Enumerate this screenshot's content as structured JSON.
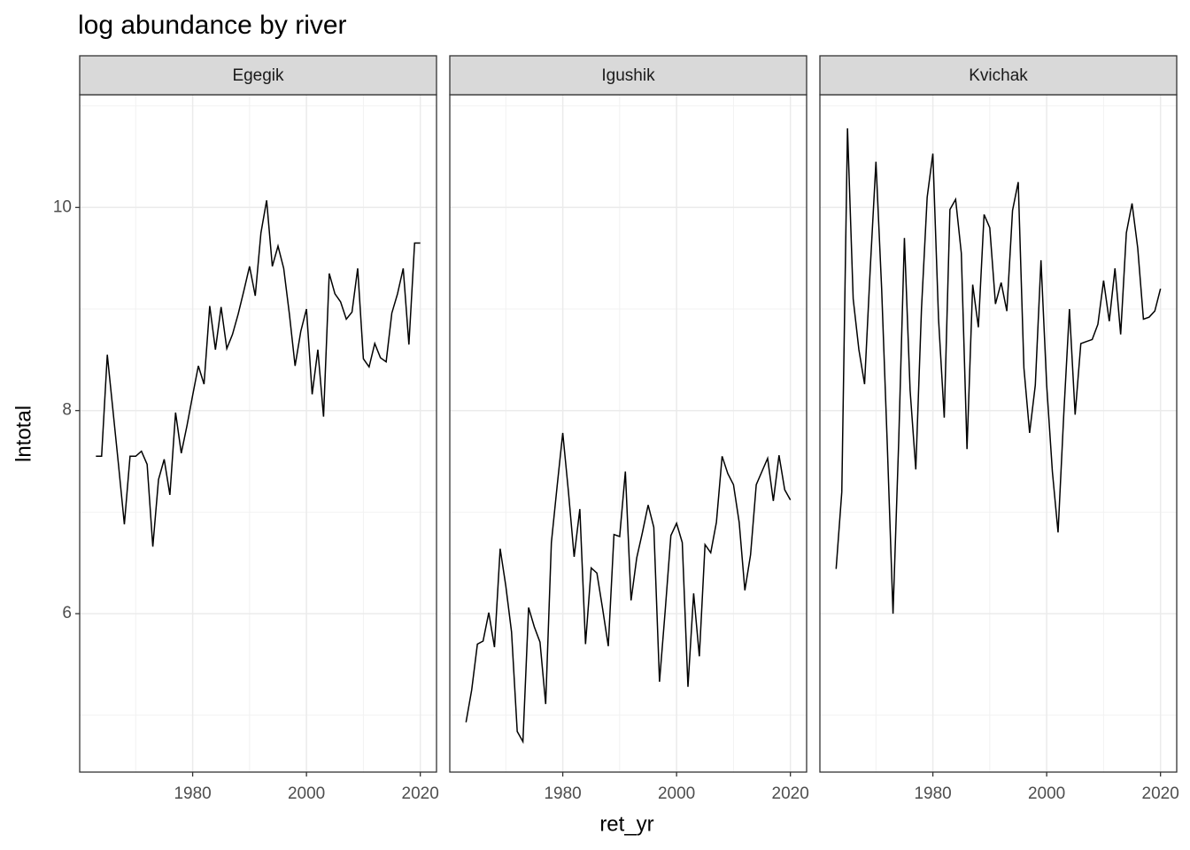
{
  "chart_data": {
    "type": "line",
    "title": "log abundance by river",
    "x_label": "ret_yr",
    "y_label": "lntotal",
    "x": [
      1963,
      1964,
      1965,
      1966,
      1967,
      1968,
      1969,
      1970,
      1971,
      1972,
      1973,
      1974,
      1975,
      1976,
      1977,
      1978,
      1979,
      1980,
      1981,
      1982,
      1983,
      1984,
      1985,
      1986,
      1987,
      1988,
      1989,
      1990,
      1991,
      1992,
      1993,
      1994,
      1995,
      1996,
      1997,
      1998,
      1999,
      2000,
      2001,
      2002,
      2003,
      2004,
      2005,
      2006,
      2007,
      2008,
      2009,
      2010,
      2011,
      2012,
      2013,
      2014,
      2015,
      2016,
      2017,
      2018,
      2019,
      2020
    ],
    "series": [
      {
        "name": "Egegik",
        "color": "#000000",
        "values": [
          7.55,
          7.55,
          8.55,
          8.0,
          7.45,
          6.88,
          7.55,
          7.55,
          7.6,
          7.47,
          6.66,
          7.32,
          7.52,
          7.17,
          7.98,
          7.58,
          7.85,
          8.15,
          8.44,
          8.26,
          9.03,
          8.6,
          9.02,
          8.61,
          8.75,
          8.95,
          9.18,
          9.42,
          9.13,
          9.75,
          10.07,
          9.42,
          9.62,
          9.4,
          8.95,
          8.44,
          8.78,
          9.0,
          8.16,
          8.6,
          7.94,
          9.35,
          9.15,
          9.07,
          8.9,
          8.97,
          9.4,
          8.51,
          8.43,
          8.66,
          8.52,
          8.48,
          8.96,
          9.15,
          9.4,
          8.65,
          9.65,
          9.65
        ]
      },
      {
        "name": "Igushik",
        "color": "#000000",
        "values": [
          4.93,
          5.25,
          5.7,
          5.73,
          6.01,
          5.67,
          6.64,
          6.27,
          5.82,
          4.84,
          4.74,
          6.06,
          5.87,
          5.72,
          5.11,
          6.7,
          7.25,
          7.78,
          7.2,
          6.56,
          7.03,
          5.7,
          6.45,
          6.4,
          6.05,
          5.68,
          6.78,
          6.76,
          7.4,
          6.13,
          6.55,
          6.8,
          7.07,
          6.85,
          5.33,
          6.03,
          6.77,
          6.89,
          6.7,
          5.28,
          6.2,
          5.58,
          6.68,
          6.6,
          6.9,
          7.55,
          7.38,
          7.27,
          6.9,
          6.23,
          6.58,
          7.27,
          7.4,
          7.53,
          7.11,
          7.56,
          7.22,
          7.12
        ]
      },
      {
        "name": "Kvichak",
        "color": "#000000",
        "values": [
          6.44,
          7.2,
          10.78,
          9.1,
          8.6,
          8.26,
          9.4,
          10.45,
          9.2,
          7.65,
          6.0,
          7.7,
          9.7,
          8.2,
          7.42,
          9.0,
          10.1,
          10.53,
          8.9,
          7.93,
          9.98,
          10.08,
          9.55,
          7.62,
          9.24,
          8.82,
          9.93,
          9.8,
          9.05,
          9.26,
          8.98,
          9.97,
          10.25,
          8.42,
          7.78,
          8.25,
          9.48,
          8.25,
          7.4,
          6.8,
          7.96,
          9.0,
          7.96,
          8.66,
          8.68,
          8.7,
          8.85,
          9.28,
          8.88,
          9.4,
          8.75,
          9.75,
          10.04,
          9.6,
          8.9,
          8.92,
          8.98,
          9.2
        ]
      }
    ],
    "xlim": [
      1960.15,
      2022.85
    ],
    "xticks": [
      1980,
      2000,
      2020
    ],
    "ylim": [
      4.44,
      11.11
    ],
    "yticks": [
      6,
      8,
      10
    ],
    "grid": true
  }
}
